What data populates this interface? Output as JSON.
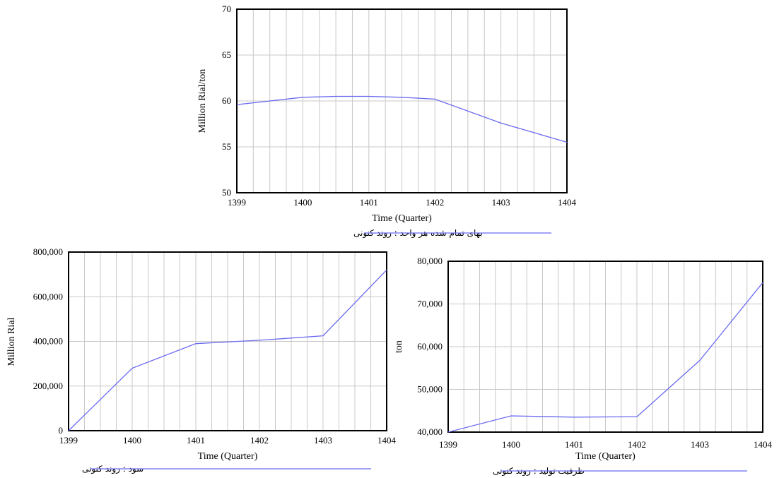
{
  "chart_data": [
    {
      "type": "line",
      "xlabel": "Time (Quarter)",
      "ylabel": "Million Rial/ton",
      "x_ticks": [
        "1399",
        "1400",
        "1401",
        "1402",
        "1403",
        "1404"
      ],
      "y_ticks": [
        "50",
        "55",
        "60",
        "65",
        "70"
      ],
      "xlim": [
        1399,
        1404
      ],
      "ylim": [
        50,
        70
      ],
      "grid": true,
      "legend_position": "bottom",
      "series": [
        {
          "name": "بهای تمام شده هر واحد : روند کنونی",
          "color": "#6a6af0",
          "x": [
            1399,
            1400,
            1400.5,
            1401,
            1401.5,
            1402,
            1403,
            1404
          ],
          "y": [
            59.6,
            60.4,
            60.5,
            60.5,
            60.4,
            60.2,
            57.6,
            55.5
          ]
        }
      ]
    },
    {
      "type": "line",
      "xlabel": "Time (Quarter)",
      "ylabel": "Million Rial",
      "x_ticks": [
        "1399",
        "1400",
        "1401",
        "1402",
        "1403",
        "1404"
      ],
      "y_ticks": [
        "0",
        "200,000",
        "400,000",
        "600,000",
        "800,000"
      ],
      "xlim": [
        1399,
        1404
      ],
      "ylim": [
        0,
        800000
      ],
      "grid": true,
      "legend_position": "bottom",
      "series": [
        {
          "name": "سود : روند کنونی",
          "color": "#6a6af0",
          "x": [
            1399,
            1400,
            1401,
            1402,
            1403,
            1404
          ],
          "y": [
            0,
            280000,
            390000,
            405000,
            425000,
            720000
          ]
        }
      ]
    },
    {
      "type": "line",
      "xlabel": "Time (Quarter)",
      "ylabel": "ton",
      "x_ticks": [
        "1399",
        "1400",
        "1401",
        "1402",
        "1403",
        "1404"
      ],
      "y_ticks": [
        "40,000",
        "50,000",
        "60,000",
        "70,000",
        "80,000"
      ],
      "xlim": [
        1399,
        1404
      ],
      "ylim": [
        40000,
        80000
      ],
      "grid": true,
      "legend_position": "bottom",
      "series": [
        {
          "name": "ظرفیت تولید : روند کنونی",
          "color": "#6a6af0",
          "x": [
            1399,
            1400,
            1401,
            1402,
            1403,
            1404
          ],
          "y": [
            40000,
            43800,
            43500,
            43600,
            56800,
            75000
          ]
        }
      ]
    }
  ]
}
